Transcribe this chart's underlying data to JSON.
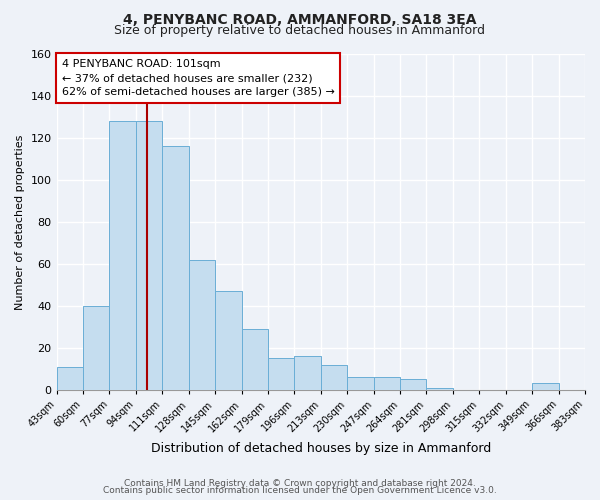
{
  "title": "4, PENYBANC ROAD, AMMANFORD, SA18 3EA",
  "subtitle": "Size of property relative to detached houses in Ammanford",
  "xlabel": "Distribution of detached houses by size in Ammanford",
  "ylabel": "Number of detached properties",
  "bin_edges": [
    43,
    60,
    77,
    94,
    111,
    128,
    145,
    162,
    179,
    196,
    213,
    230,
    247,
    264,
    281,
    298,
    315,
    332,
    349,
    366,
    383
  ],
  "bar_heights": [
    11,
    40,
    128,
    128,
    116,
    62,
    47,
    29,
    15,
    16,
    12,
    6,
    6,
    5,
    1,
    0,
    0,
    0,
    3,
    0
  ],
  "bar_color": "#c5ddef",
  "bar_edge_color": "#6aaed6",
  "vline_x": 101,
  "vline_color": "#aa0000",
  "annotation_line1": "4 PENYBANC ROAD: 101sqm",
  "annotation_line2": "← 37% of detached houses are smaller (232)",
  "annotation_line3": "62% of semi-detached houses are larger (385) →",
  "annotation_box_color": "#ffffff",
  "annotation_box_edge": "#cc0000",
  "ylim": [
    0,
    160
  ],
  "yticks": [
    0,
    20,
    40,
    60,
    80,
    100,
    120,
    140,
    160
  ],
  "footer_line1": "Contains HM Land Registry data © Crown copyright and database right 2024.",
  "footer_line2": "Contains public sector information licensed under the Open Government Licence v3.0.",
  "bg_color": "#eef2f8",
  "plot_bg_color": "#eef2f8",
  "title_fontsize": 10,
  "subtitle_fontsize": 9,
  "ylabel_fontsize": 8,
  "xlabel_fontsize": 9
}
